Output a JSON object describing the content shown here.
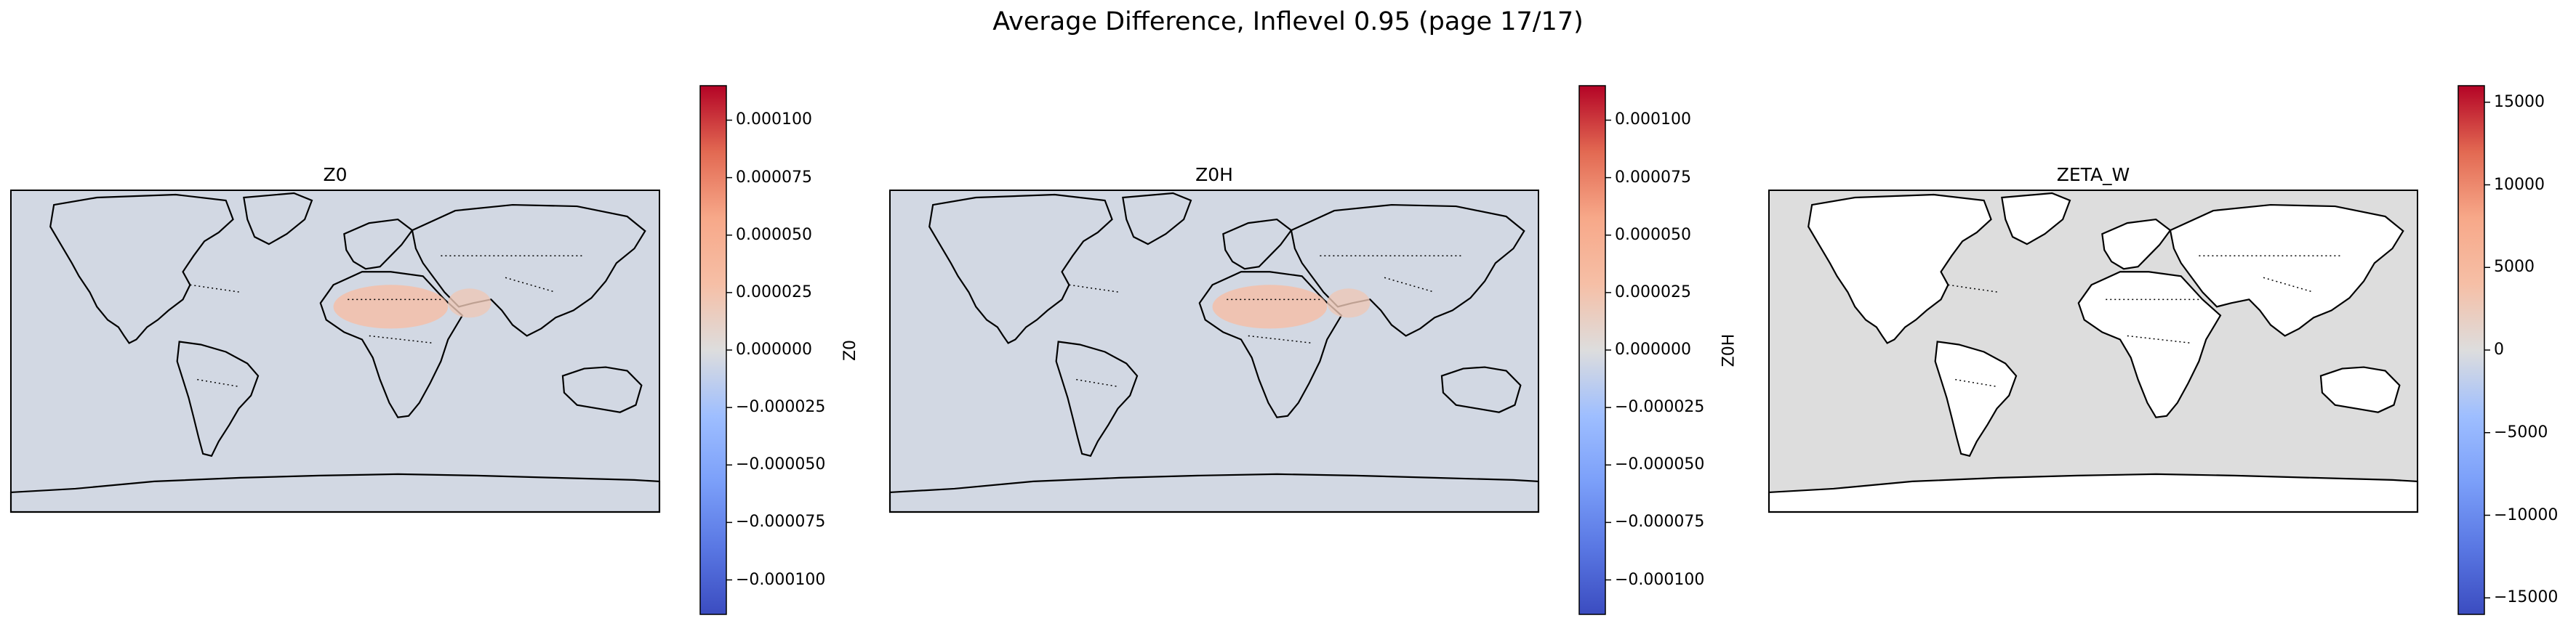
{
  "figure": {
    "title": "Average Difference, Inflevel 0.95 (page 17/17)"
  },
  "colors": {
    "cmap_low": "#3b4cc0",
    "cmap_mid": "#dddddd",
    "cmap_high": "#b40426",
    "land_line": "#000000"
  },
  "chart_data": [
    {
      "type": "heatmap",
      "title": "Z0",
      "colorbar_label": "Z0",
      "background_value": -5e-06,
      "colorbar": {
        "range": [
          -0.000115,
          0.000115
        ],
        "ticks": [
          0.0001,
          7.5e-05,
          5e-05,
          2.5e-05,
          0,
          -2.5e-05,
          -5e-05,
          -7.5e-05,
          -0.0001
        ],
        "tick_labels": [
          "0.000100",
          "0.000075",
          "0.000050",
          "0.000025",
          "0.000000",
          "−0.000025",
          "−0.000050",
          "−0.000075",
          "−0.000100"
        ]
      },
      "highlights": [
        {
          "region": "Sahara",
          "value": 3e-05
        },
        {
          "region": "Arabia",
          "value": 2e-05
        }
      ]
    },
    {
      "type": "heatmap",
      "title": "Z0H",
      "colorbar_label": "Z0H",
      "background_value": -5e-06,
      "colorbar": {
        "range": [
          -0.000115,
          0.000115
        ],
        "ticks": [
          0.0001,
          7.5e-05,
          5e-05,
          2.5e-05,
          0,
          -2.5e-05,
          -5e-05,
          -7.5e-05,
          -0.0001
        ],
        "tick_labels": [
          "0.000100",
          "0.000075",
          "0.000050",
          "0.000025",
          "0.000000",
          "−0.000025",
          "−0.000050",
          "−0.000075",
          "−0.000100"
        ]
      },
      "highlights": [
        {
          "region": "Sahara",
          "value": 3e-05
        },
        {
          "region": "Arabia",
          "value": 2e-05
        }
      ]
    },
    {
      "type": "heatmap",
      "title": "ZETA_W",
      "colorbar_label": "ZETA_W",
      "background_value": 0,
      "land_masked": true,
      "colorbar": {
        "range": [
          -16000,
          16000
        ],
        "ticks": [
          15000,
          10000,
          5000,
          0,
          -5000,
          -10000,
          -15000
        ],
        "tick_labels": [
          "15000",
          "10000",
          "5000",
          "0",
          "−5000",
          "−10000",
          "−15000"
        ]
      },
      "highlights": []
    }
  ]
}
